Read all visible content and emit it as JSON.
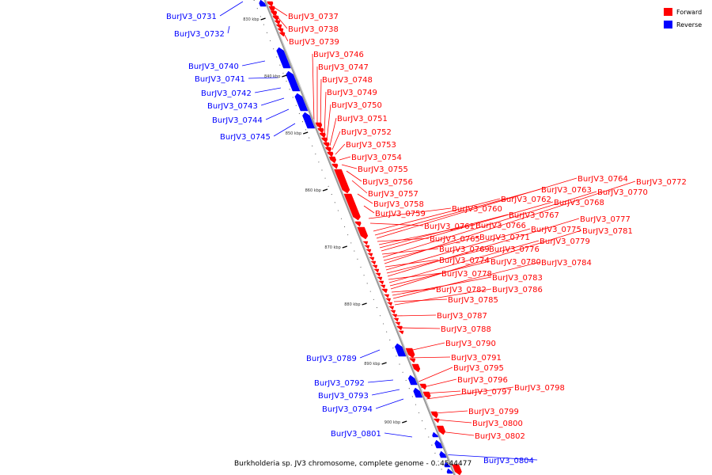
{
  "colors": {
    "forward": "#ff0000",
    "reverse": "#0000ff",
    "axis": "#9a9a9a",
    "text": "#000000"
  },
  "legend": {
    "items": [
      {
        "label": "Forward",
        "color": "#ff0000"
      },
      {
        "label": "Reverse",
        "color": "#0000ff"
      }
    ]
  },
  "title": "Burkholderia sp. JV3 chromosome, complete genome - 0..4544477",
  "ticks": [
    "830 kbp",
    "840 kbp",
    "850 kbp",
    "860 kbp",
    "870 kbp",
    "880 kbp",
    "890 kbp",
    "900 kbp"
  ],
  "genes_forward": [
    "BurJV3_0737",
    "BurJV3_0738",
    "BurJV3_0739",
    "BurJV3_0746",
    "BurJV3_0747",
    "BurJV3_0748",
    "BurJV3_0749",
    "BurJV3_0750",
    "BurJV3_0751",
    "BurJV3_0752",
    "BurJV3_0753",
    "BurJV3_0754",
    "BurJV3_0755",
    "BurJV3_0756",
    "BurJV3_0757",
    "BurJV3_0758",
    "BurJV3_0759",
    "BurJV3_0760",
    "BurJV3_0761",
    "BurJV3_0762",
    "BurJV3_0763",
    "BurJV3_0764",
    "BurJV3_0765",
    "BurJV3_0766",
    "BurJV3_0767",
    "BurJV3_0768",
    "BurJV3_0769",
    "BurJV3_0770",
    "BurJV3_0771",
    "BurJV3_0772",
    "BurJV3_0774",
    "BurJV3_0775",
    "BurJV3_0776",
    "BurJV3_0777",
    "BurJV3_0778",
    "BurJV3_0779",
    "BurJV3_0780",
    "BurJV3_0781",
    "BurJV3_0782",
    "BurJV3_0783",
    "BurJV3_0784",
    "BurJV3_0785",
    "BurJV3_0786",
    "BurJV3_0787",
    "BurJV3_0788",
    "BurJV3_0790",
    "BurJV3_0791",
    "BurJV3_0795",
    "BurJV3_0796",
    "BurJV3_0797",
    "BurJV3_0798",
    "BurJV3_0799",
    "BurJV3_0800",
    "BurJV3_0802"
  ],
  "genes_reverse": [
    "BurJV3_0731",
    "BurJV3_0732",
    "BurJV3_0740",
    "BurJV3_0741",
    "BurJV3_0742",
    "BurJV3_0743",
    "BurJV3_0744",
    "BurJV3_0745",
    "BurJV3_0789",
    "BurJV3_0792",
    "BurJV3_0793",
    "BurJV3_0794",
    "BurJV3_0801",
    "BurJV3_0804"
  ]
}
